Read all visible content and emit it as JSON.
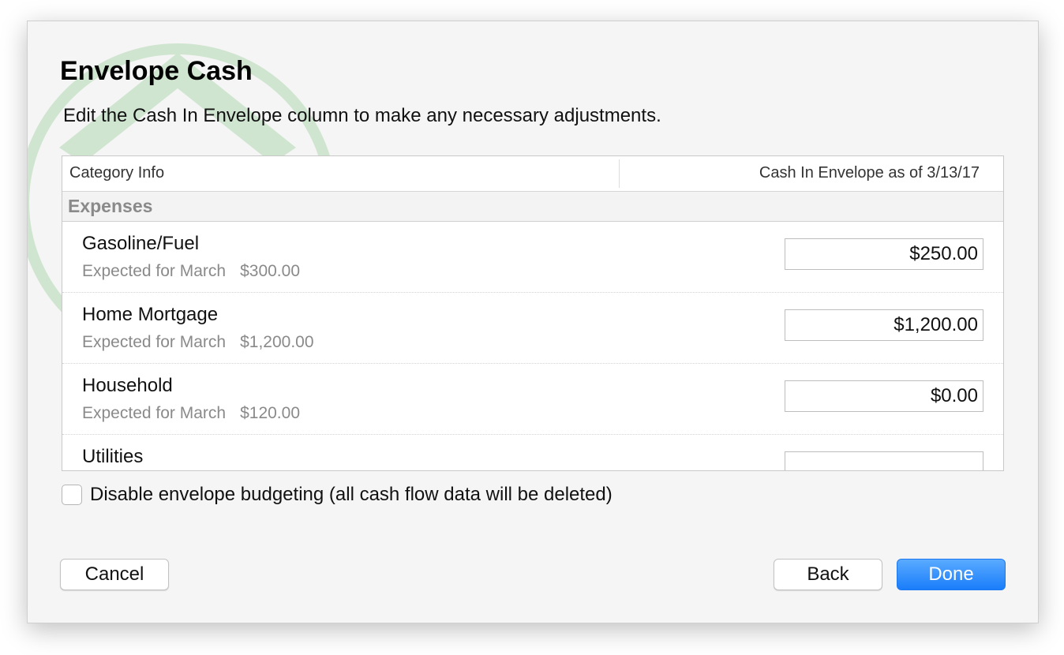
{
  "dialog": {
    "title": "Envelope Cash",
    "subtitle": "Edit the Cash In Envelope column to make any necessary adjustments."
  },
  "table": {
    "headers": {
      "left": "Category Info",
      "right": "Cash In Envelope as of 3/13/17"
    },
    "group": "Expenses",
    "rows": [
      {
        "name": "Gasoline/Fuel",
        "expected_label": "Expected for March",
        "expected": "$300.00",
        "cash": "$250.00"
      },
      {
        "name": "Home Mortgage",
        "expected_label": "Expected for March",
        "expected": "$1,200.00",
        "cash": "$1,200.00"
      },
      {
        "name": "Household",
        "expected_label": "Expected for March",
        "expected": "$120.00",
        "cash": "$0.00"
      },
      {
        "name": "Utilities",
        "cash": ""
      }
    ]
  },
  "options": {
    "disable_label": "Disable envelope budgeting (all cash flow data will be deleted)",
    "disable_checked": false
  },
  "buttons": {
    "cancel": "Cancel",
    "back": "Back",
    "done": "Done"
  },
  "colors": {
    "accent": "#1a7dfa",
    "watermark": "#4caf50"
  }
}
